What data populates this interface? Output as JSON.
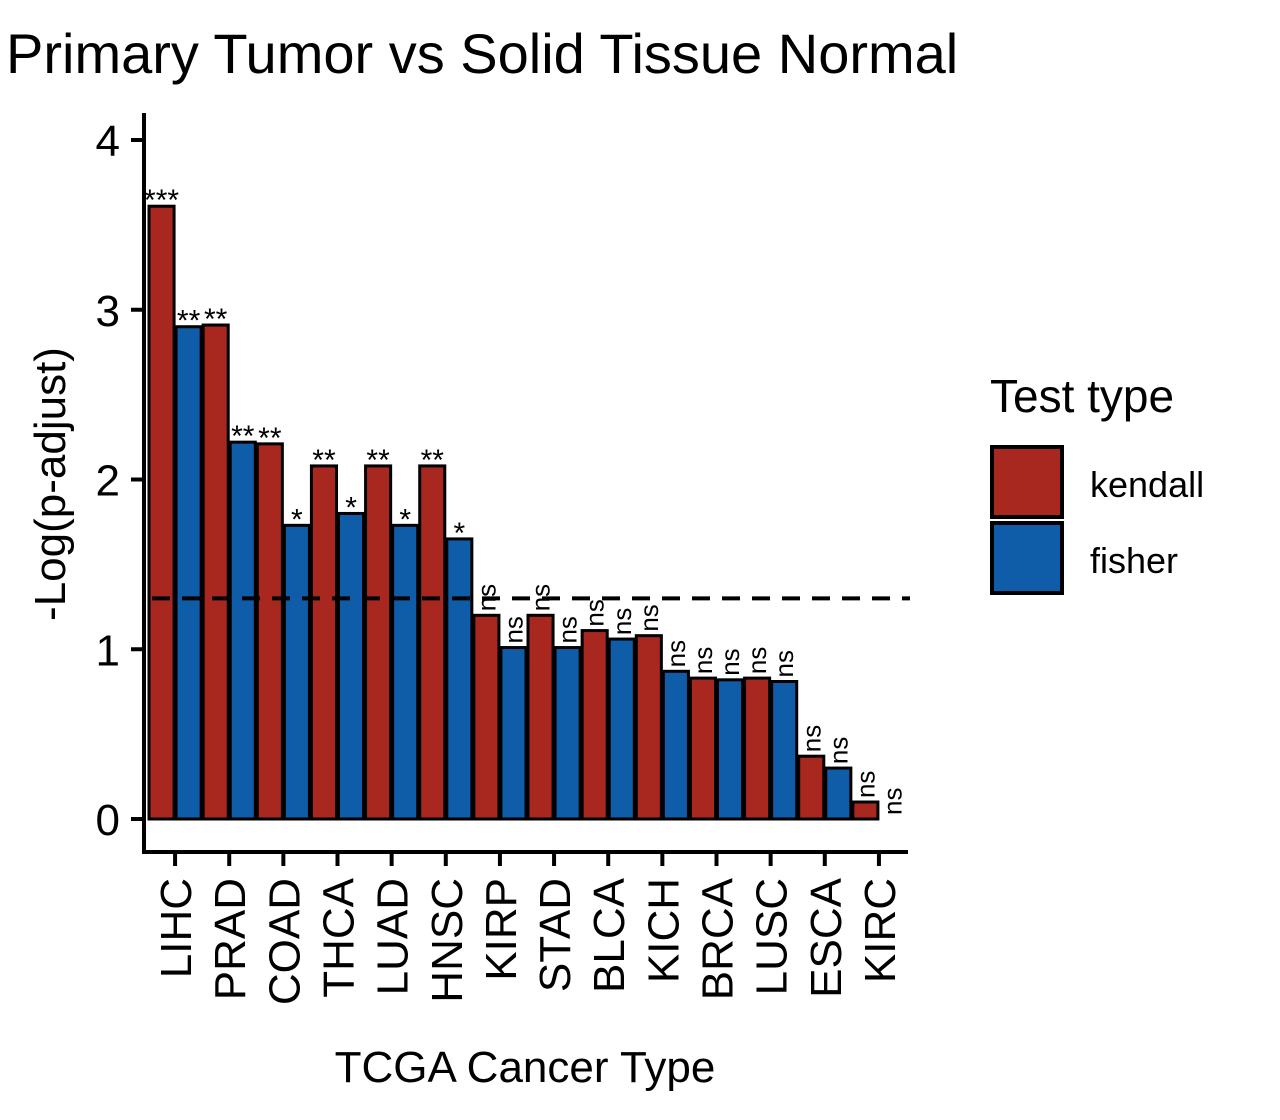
{
  "chart_data": {
    "type": "bar",
    "title": "Primary Tumor vs Solid Tissue Normal",
    "xlabel": "TCGA Cancer Type",
    "ylabel": "-Log(p-adjust)",
    "ylim": [
      0,
      4.15
    ],
    "yticks": [
      "0",
      "1",
      "2",
      "3",
      "4"
    ],
    "categories": [
      "LIHC",
      "PRAD",
      "COAD",
      "THCA",
      "LUAD",
      "HNSC",
      "KIRP",
      "STAD",
      "BLCA",
      "KICH",
      "BRCA",
      "LUSC",
      "ESCA",
      "KIRC"
    ],
    "threshold": 1.3,
    "grid": false,
    "legend_position": "right",
    "legend": {
      "title": "Test type"
    },
    "series": [
      {
        "name": "kendall",
        "color": "#A8281F",
        "values": [
          3.61,
          2.91,
          2.21,
          2.08,
          2.08,
          2.08,
          1.2,
          1.2,
          1.11,
          1.08,
          0.83,
          0.83,
          0.37,
          0.1
        ],
        "labels": [
          "***",
          "**",
          "**",
          "**",
          "**",
          "**",
          "ns",
          "ns",
          "ns",
          "ns",
          "ns",
          "ns",
          "ns",
          "ns"
        ]
      },
      {
        "name": "fisher",
        "color": "#0F5DA8",
        "values": [
          2.9,
          2.22,
          1.73,
          1.8,
          1.73,
          1.65,
          1.01,
          1.01,
          1.06,
          0.87,
          0.82,
          0.81,
          0.3,
          0.0
        ],
        "labels": [
          "**",
          "**",
          "*",
          "*",
          "*",
          "*",
          "ns",
          "ns",
          "ns",
          "ns",
          "ns",
          "ns",
          "ns",
          "ns"
        ]
      }
    ]
  }
}
